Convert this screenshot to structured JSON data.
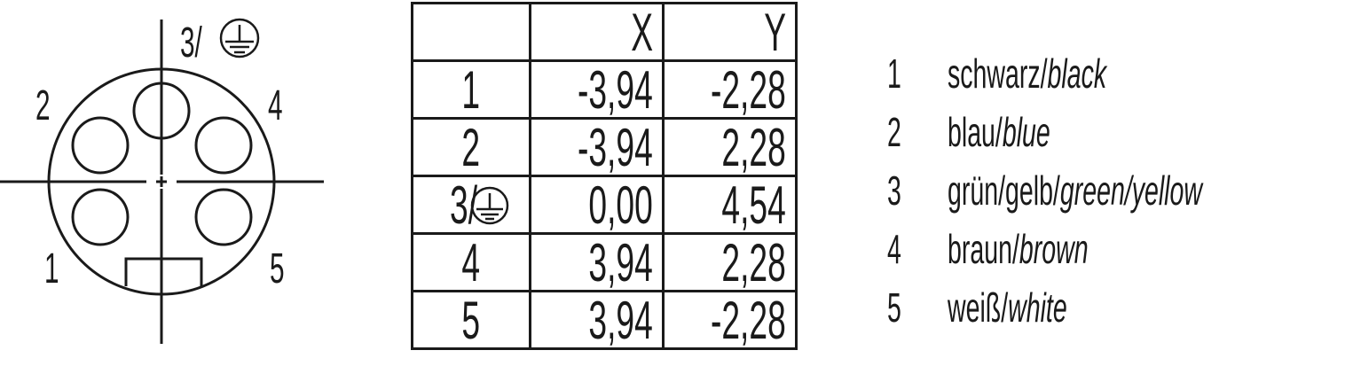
{
  "connector": {
    "pin_labels": {
      "p1": "1",
      "p2": "2",
      "p3": "3/",
      "p4": "4",
      "p5": "5"
    },
    "ground_symbol": "protective-earth-icon"
  },
  "table": {
    "headers": [
      "",
      "X",
      "Y"
    ],
    "rows": [
      {
        "pin": "1",
        "x": "-3,94",
        "y": "-2,28"
      },
      {
        "pin": "2",
        "x": "-3,94",
        "y": "2,28"
      },
      {
        "pin": "3/",
        "x": "0,00",
        "y": "4,54",
        "ground": true
      },
      {
        "pin": "4",
        "x": "3,94",
        "y": "2,28"
      },
      {
        "pin": "5",
        "x": "3,94",
        "y": "-2,28"
      }
    ]
  },
  "legend": [
    {
      "num": "1",
      "de": "schwarz/",
      "en": "black"
    },
    {
      "num": "2",
      "de": "blau/",
      "en": "blue"
    },
    {
      "num": "3",
      "de": "grün/gelb/",
      "en": "green/yellow"
    },
    {
      "num": "4",
      "de": "braun/",
      "en": "brown"
    },
    {
      "num": "5",
      "de": "weiß/",
      "en": "white"
    }
  ],
  "colors": {
    "ink": "#1a1a1a",
    "background": "#ffffff"
  }
}
